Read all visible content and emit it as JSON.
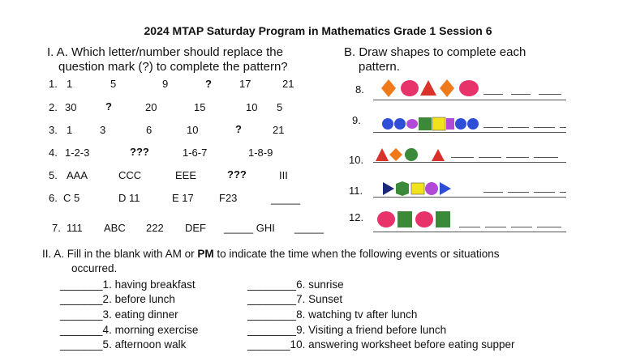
{
  "title": "2024 MTAP Saturday Program in Mathematics Grade 1 Session 6",
  "partA": {
    "heading1": "I. A. Which letter/number should replace the",
    "heading2": "question mark (?) to complete the pattern?",
    "rows": [
      {
        "num": "1.",
        "items": [
          "1",
          "5",
          "9",
          "?",
          "17",
          "21"
        ]
      },
      {
        "num": "2.",
        "items": [
          "30",
          "?",
          "20",
          "15",
          "10",
          "5"
        ]
      },
      {
        "num": "3.",
        "items": [
          "1",
          "3",
          "6",
          "10",
          "?",
          "21"
        ]
      },
      {
        "num": "4.",
        "items": [
          "1-2-3",
          "???",
          "1-6-7",
          "1-8-9"
        ]
      },
      {
        "num": "5.",
        "items": [
          "AAA",
          "CCC",
          "EEE",
          "???",
          "III"
        ]
      },
      {
        "num": "6.",
        "items": [
          "C 5",
          "D 11",
          "E 17",
          "F23",
          "_____"
        ]
      },
      {
        "num": "7.",
        "items": [
          "111",
          "ABC",
          "222",
          "DEF",
          "_____ GHI",
          "_____"
        ]
      }
    ]
  },
  "partB": {
    "heading1": "B. Draw shapes to complete each",
    "heading2": "pattern.",
    "numbers": [
      "8.",
      "9.",
      "10.",
      "11.",
      "12."
    ]
  },
  "colors": {
    "orange": "#f07a1a",
    "pink": "#e8336a",
    "red": "#d8322a",
    "blue": "#2f4ed8",
    "purple": "#b24ad8",
    "green": "#3a8a3a",
    "yellow": "#f2e21c",
    "navy": "#1a2a78"
  },
  "partII": {
    "heading1": "II. A. Fill in the blank with AM or",
    "heading_pm": "PM",
    "heading2": "to indicate the time when the following events or situations",
    "heading3": "occurred.",
    "left": [
      "_______1. having breakfast",
      "_______2. before lunch",
      "_______3. eating dinner",
      "_______4. morning exercise",
      "_______5. afternoon walk"
    ],
    "right": [
      "________6. sunrise",
      "________7. Sunset",
      "________8. watching tv after lunch",
      "________9. Visiting a friend before lunch",
      "_______10. answering worksheet before eating supper"
    ]
  }
}
